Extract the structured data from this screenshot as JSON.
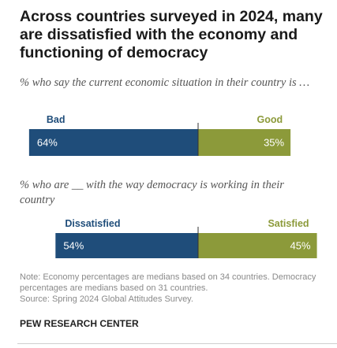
{
  "title": "Across countries surveyed in 2024, many are dissatisfied with the economy and functioning of democracy",
  "chart_data": [
    {
      "type": "bar",
      "subtitle": "% who say the current economic situation in their country is …",
      "series": [
        {
          "name": "Bad",
          "value": 64,
          "label": "64%",
          "color": "#1f4d7a"
        },
        {
          "name": "Good",
          "value": 35,
          "label": "35%",
          "color": "#8c9a3a"
        }
      ]
    },
    {
      "type": "bar",
      "subtitle": "% who are __ with the way democracy is working in their country",
      "series": [
        {
          "name": "Dissatisfied",
          "value": 54,
          "label": "54%",
          "color": "#1f4d7a"
        },
        {
          "name": "Satisfied",
          "value": 45,
          "label": "45%",
          "color": "#8c9a3a"
        }
      ]
    }
  ],
  "note": "Note: Economy percentages are medians based on 34 countries. Democracy percentages are medians based on 31 countries.",
  "source": "Source: Spring 2024 Global Attitudes Survey.",
  "brand": "PEW RESEARCH CENTER",
  "colors": {
    "negative": "#1f4d7a",
    "positive": "#8c9a3a",
    "divider": "#333333"
  }
}
